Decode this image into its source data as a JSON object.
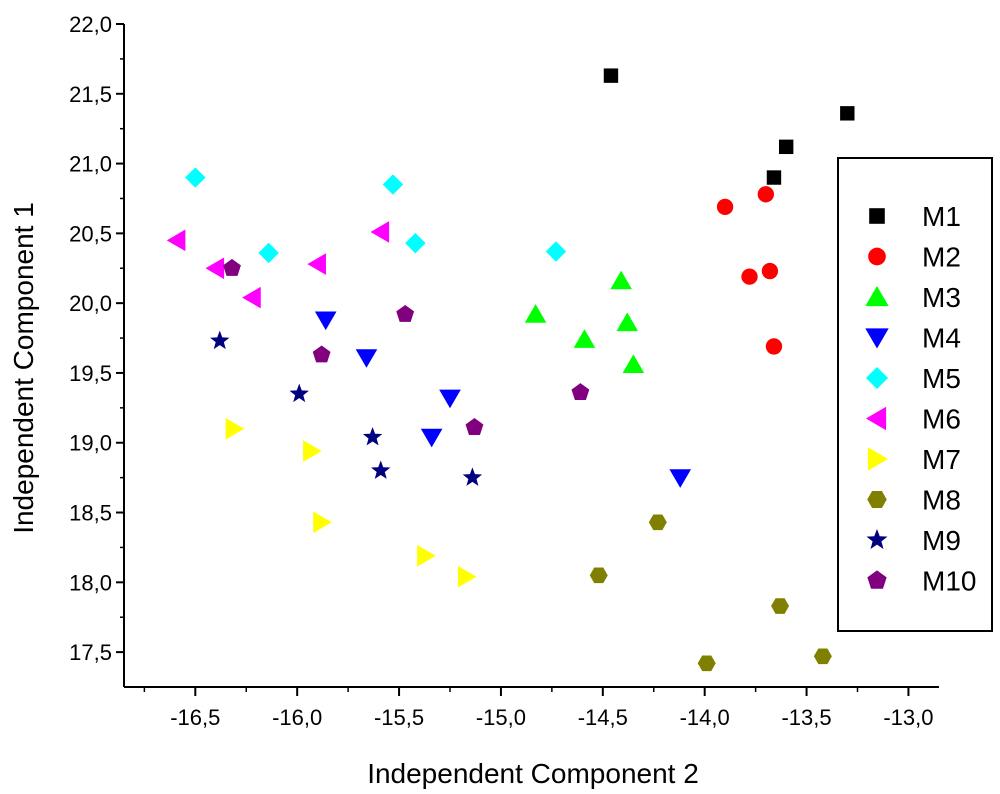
{
  "chart_data": {
    "type": "scatter",
    "title": "",
    "xlabel": "Independent Component 2",
    "ylabel": "Independent Component 1",
    "xlim": [
      -16.85,
      -12.85
    ],
    "ylim": [
      17.25,
      22.0
    ],
    "x_ticks": [
      -16.5,
      -16.0,
      -15.5,
      -15.0,
      -14.5,
      -14.0,
      -13.5,
      -13.0
    ],
    "x_tick_labels": [
      "-16,5",
      "-16,0",
      "-15,5",
      "-15,0",
      "-14,5",
      "-14,0",
      "-13,5",
      "-13,0"
    ],
    "y_ticks": [
      17.5,
      18.0,
      18.5,
      19.0,
      19.5,
      20.0,
      20.5,
      21.0,
      21.5,
      22.0
    ],
    "y_tick_labels": [
      "17,5",
      "18,0",
      "18,5",
      "19,0",
      "19,5",
      "20,0",
      "20,5",
      "21,0",
      "21,5",
      "22,0"
    ],
    "grid": false,
    "legend_position": "right",
    "series": [
      {
        "name": "M1",
        "marker": "square",
        "color": "#000000",
        "points": [
          [
            -14.46,
            21.63
          ],
          [
            -13.3,
            21.36
          ],
          [
            -13.6,
            21.12
          ],
          [
            -13.66,
            20.9
          ]
        ]
      },
      {
        "name": "M2",
        "marker": "circle",
        "color": "#ff0000",
        "points": [
          [
            -13.9,
            20.69
          ],
          [
            -13.7,
            20.78
          ],
          [
            -13.78,
            20.19
          ],
          [
            -13.68,
            20.23
          ],
          [
            -13.66,
            19.69
          ]
        ]
      },
      {
        "name": "M3",
        "marker": "triangle-up",
        "color": "#00ff00",
        "points": [
          [
            -14.41,
            20.16
          ],
          [
            -14.83,
            19.92
          ],
          [
            -14.38,
            19.86
          ],
          [
            -14.59,
            19.74
          ],
          [
            -14.35,
            19.56
          ]
        ]
      },
      {
        "name": "M4",
        "marker": "triangle-down",
        "color": "#0000ff",
        "points": [
          [
            -15.86,
            19.88
          ],
          [
            -15.66,
            19.61
          ],
          [
            -15.25,
            19.32
          ],
          [
            -15.34,
            19.04
          ],
          [
            -14.12,
            18.75
          ]
        ]
      },
      {
        "name": "M5",
        "marker": "diamond",
        "color": "#00ffff",
        "points": [
          [
            -16.5,
            20.9
          ],
          [
            -15.53,
            20.85
          ],
          [
            -16.14,
            20.36
          ],
          [
            -15.42,
            20.43
          ],
          [
            -14.73,
            20.37
          ]
        ]
      },
      {
        "name": "M6",
        "marker": "triangle-left",
        "color": "#ff00ff",
        "points": [
          [
            -16.59,
            20.45
          ],
          [
            -16.4,
            20.25
          ],
          [
            -15.9,
            20.28
          ],
          [
            -15.59,
            20.51
          ],
          [
            -16.22,
            20.04
          ]
        ]
      },
      {
        "name": "M7",
        "marker": "triangle-right",
        "color": "#ffff00",
        "points": [
          [
            -16.31,
            19.1
          ],
          [
            -15.93,
            18.94
          ],
          [
            -15.88,
            18.43
          ],
          [
            -15.37,
            18.19
          ],
          [
            -15.17,
            18.04
          ]
        ]
      },
      {
        "name": "M8",
        "marker": "hexagon",
        "color": "#808000",
        "points": [
          [
            -14.23,
            18.43
          ],
          [
            -14.52,
            18.05
          ],
          [
            -13.63,
            17.83
          ],
          [
            -13.42,
            17.47
          ],
          [
            -13.99,
            17.42
          ]
        ]
      },
      {
        "name": "M9",
        "marker": "star",
        "color": "#000080",
        "points": [
          [
            -16.38,
            19.73
          ],
          [
            -15.99,
            19.35
          ],
          [
            -15.63,
            19.04
          ],
          [
            -15.59,
            18.8
          ],
          [
            -15.14,
            18.75
          ]
        ]
      },
      {
        "name": "M10",
        "marker": "pentagon",
        "color": "#800080",
        "points": [
          [
            -16.32,
            20.25
          ],
          [
            -15.47,
            19.92
          ],
          [
            -15.88,
            19.63
          ],
          [
            -15.13,
            19.11
          ],
          [
            -14.61,
            19.36
          ]
        ]
      }
    ]
  }
}
